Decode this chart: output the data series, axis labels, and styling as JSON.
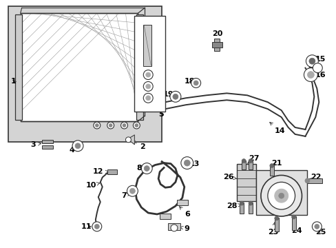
{
  "bg_color": "#ffffff",
  "shading_color": "#d4d4d4",
  "line_color": "#333333",
  "fig_width": 4.89,
  "fig_height": 3.6,
  "dpi": 100
}
